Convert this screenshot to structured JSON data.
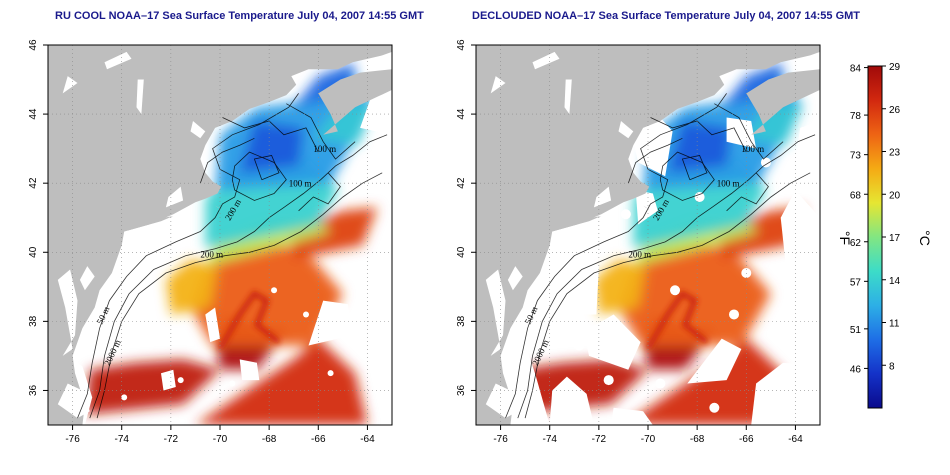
{
  "panels": [
    {
      "title": "RU COOL NOAA–17 Sea Surface Temperature July 04, 2007 14:55 GMT",
      "decloud": false
    },
    {
      "title": "DECLOUDED NOAA–17 Sea Surface Temperature July 04, 2007 14:55 GMT",
      "decloud": true
    }
  ],
  "axes": {
    "lon_range": [
      -77,
      -63
    ],
    "lat_range": [
      35,
      46
    ],
    "x_ticks": [
      "-76",
      "-74",
      "-72",
      "-70",
      "-68",
      "-66",
      "-64"
    ],
    "x_tick_values": [
      -76,
      -74,
      -72,
      -70,
      -68,
      -66,
      -64
    ],
    "y_ticks": [
      "36",
      "38",
      "40",
      "42",
      "44",
      "46"
    ],
    "y_tick_values": [
      36,
      38,
      40,
      42,
      44,
      46
    ],
    "grid": "dotted"
  },
  "contour_labels": [
    "100 m",
    "100 m",
    "200 m",
    "200 m",
    "50 m",
    "2000 m"
  ],
  "colorbar": {
    "celsius_labels": [
      "29",
      "26",
      "23",
      "20",
      "17",
      "14",
      "11",
      "8"
    ],
    "celsius_values": [
      29,
      26,
      23,
      20,
      17,
      14,
      11,
      8
    ],
    "fahrenheit_labels": [
      "84",
      "78",
      "73",
      "68",
      "62",
      "57",
      "51",
      "46"
    ],
    "fahrenheit_values": [
      84,
      78,
      73,
      68,
      62,
      57,
      51,
      46
    ],
    "range_c": [
      5,
      29
    ],
    "unit_c": "°C",
    "unit_f": "°F",
    "colors": [
      "#0a0a8c",
      "#1432c8",
      "#1e6ee6",
      "#2dafe6",
      "#3cdcc8",
      "#82e682",
      "#e6e632",
      "#f5aa14",
      "#ee6414",
      "#d2280f",
      "#a00a0a"
    ]
  }
}
